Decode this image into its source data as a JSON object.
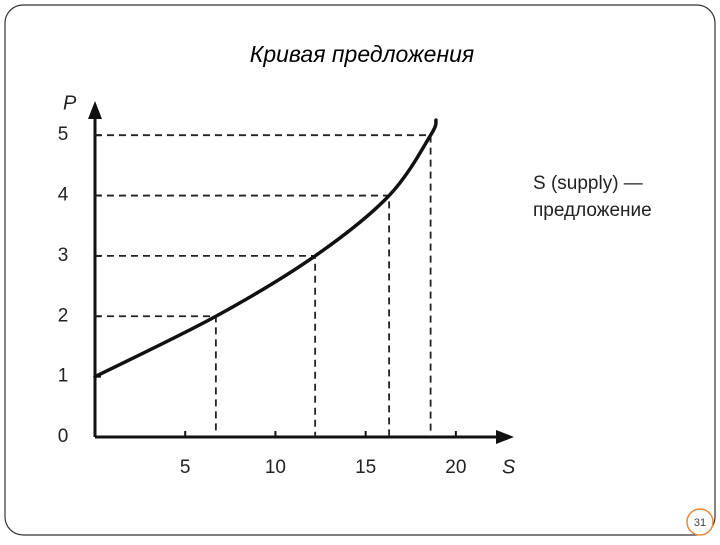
{
  "title": "Кривая предложения",
  "page_number": "31",
  "chart_data": {
    "type": "line",
    "x_label": "S",
    "y_label": "P",
    "annotation": [
      "S (supply) —",
      "предложение"
    ],
    "series": [
      {
        "name": "S",
        "color": "#111111",
        "x": [
          0,
          6.7,
          12.2,
          16.3,
          18.6,
          18.9
        ],
        "values": [
          1,
          2,
          3,
          4,
          5,
          5.25
        ]
      }
    ],
    "xlim": [
      0,
      23
    ],
    "xticks": [
      5,
      10,
      15,
      20
    ],
    "ylim": [
      0,
      5.5
    ],
    "yticks": [
      0,
      1,
      2,
      3,
      4,
      5
    ]
  }
}
